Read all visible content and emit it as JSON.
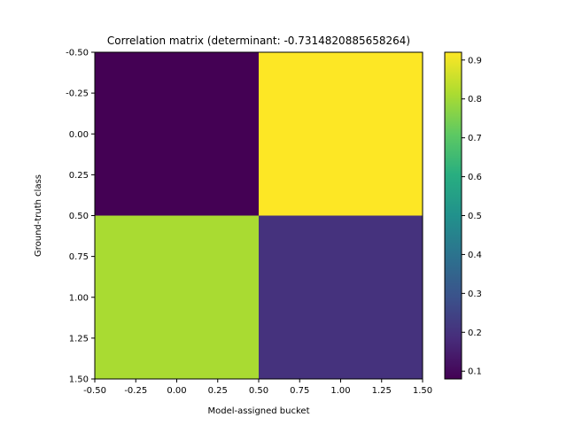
{
  "chart_data": {
    "type": "heatmap",
    "title": "Correlation matrix (determinant: -0.7314820885658264)",
    "xlabel": "Model-assigned bucket",
    "ylabel": "Ground-truth class",
    "xlim": [
      -0.5,
      1.5
    ],
    "ylim": [
      1.5,
      -0.5
    ],
    "x_ticks": [
      "-0.50",
      "-0.25",
      "0.00",
      "0.25",
      "0.50",
      "0.75",
      "1.00",
      "1.25",
      "1.50"
    ],
    "y_ticks": [
      "-0.50",
      "-0.25",
      "0.00",
      "0.25",
      "0.50",
      "0.75",
      "1.00",
      "1.25",
      "1.50"
    ],
    "values": [
      [
        0.08,
        0.92
      ],
      [
        0.81,
        0.2
      ]
    ],
    "colormap": "viridis",
    "colorbar": {
      "range": [
        0.08,
        0.92
      ],
      "ticks": [
        "0.1",
        "0.2",
        "0.3",
        "0.4",
        "0.5",
        "0.6",
        "0.7",
        "0.8",
        "0.9"
      ]
    }
  }
}
